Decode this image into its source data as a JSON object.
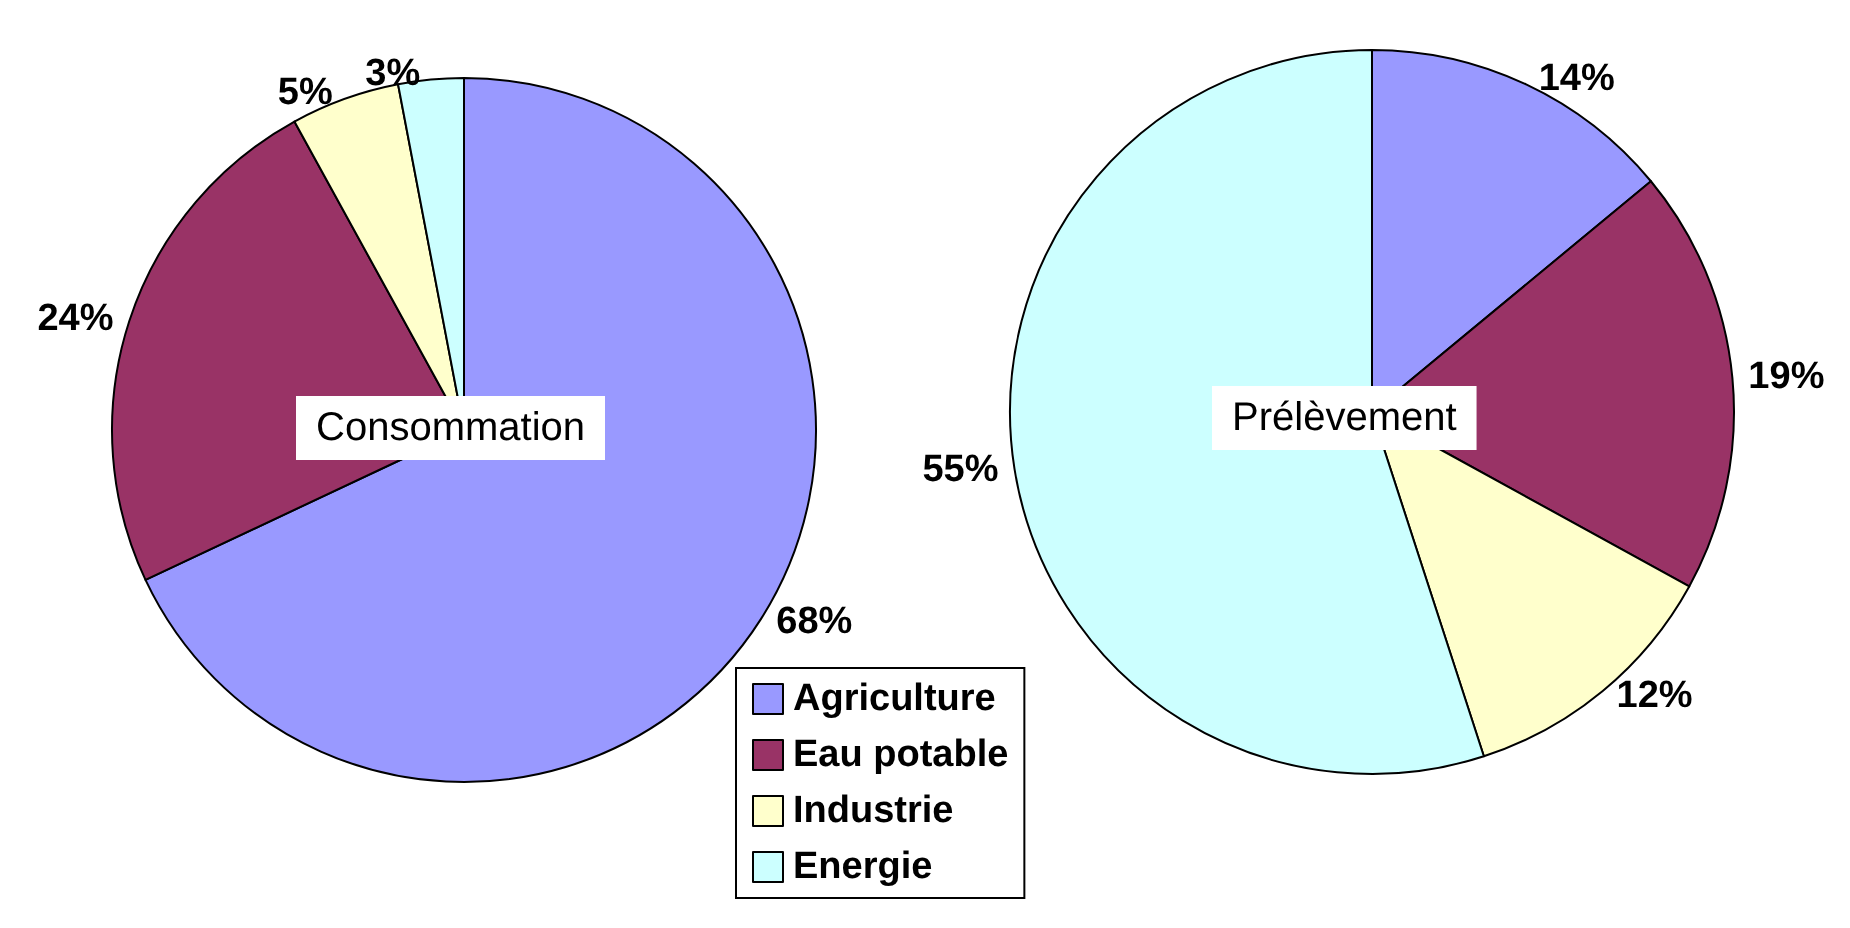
{
  "chart_data": {
    "type": "pie",
    "categories": [
      "Agriculture",
      "Eau potable",
      "Industrie",
      "Energie"
    ],
    "colors": [
      "#9999ff",
      "#993366",
      "#ffffcc",
      "#ccffff"
    ],
    "legend": "bottom",
    "series": [
      {
        "name": "Consommation",
        "values": [
          68,
          24,
          5,
          3
        ],
        "value_labels": [
          "68%",
          "24%",
          "5%",
          "3%"
        ]
      },
      {
        "name": "Prélèvement",
        "values": [
          14,
          19,
          12,
          55
        ],
        "value_labels": [
          "14%",
          "19%",
          "12%",
          "55%"
        ]
      }
    ]
  }
}
